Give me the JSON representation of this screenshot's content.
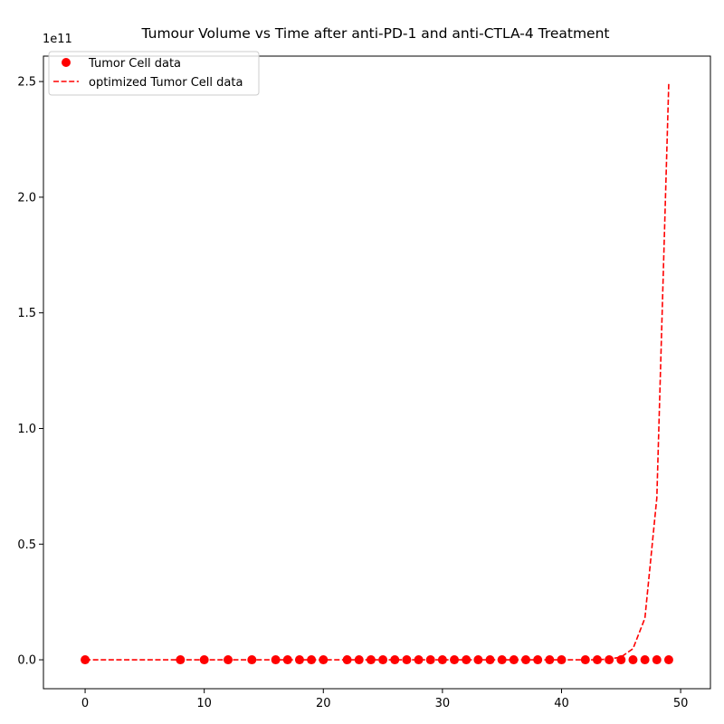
{
  "chart_data": {
    "type": "scatter",
    "title": "Tumour Volume vs Time after anti-PD-1 and anti-CTLA-4 Treatment",
    "xlabel": "",
    "ylabel": "",
    "y_offset_text": "1e11",
    "xlim": [
      -3.5,
      52.5
    ],
    "ylim": [
      -12500000000,
      261000000000
    ],
    "x_ticks": [
      0,
      10,
      20,
      30,
      40,
      50
    ],
    "x_tick_labels": [
      "0",
      "10",
      "20",
      "30",
      "40",
      "50"
    ],
    "y_ticks": [
      0,
      50000000000,
      100000000000,
      150000000000,
      200000000000,
      250000000000
    ],
    "y_tick_labels": [
      "0.0",
      "0.5",
      "1.0",
      "1.5",
      "2.0",
      "2.5"
    ],
    "legend_position": "top-left",
    "series": [
      {
        "name": "Tumor Cell data",
        "kind": "markers",
        "color": "#ff0000",
        "x": [
          0,
          8,
          10,
          12,
          14,
          16,
          17,
          18,
          19,
          20,
          22,
          23,
          24,
          25,
          26,
          27,
          28,
          29,
          30,
          31,
          32,
          33,
          34,
          35,
          36,
          37,
          38,
          39,
          40,
          42,
          43,
          44,
          45,
          46,
          47,
          48,
          49
        ],
        "y": [
          0,
          0,
          0,
          0,
          0,
          0,
          0,
          0,
          0,
          0,
          0,
          0,
          0,
          0,
          0,
          0,
          0,
          0,
          0,
          0,
          0,
          0,
          0,
          0,
          0,
          0,
          0,
          0,
          0,
          0,
          0,
          0,
          0,
          0,
          0,
          0,
          0
        ]
      },
      {
        "name": "optimized Tumor Cell data",
        "kind": "dashed-line",
        "color": "#ff0000",
        "x": [
          0,
          8,
          10,
          12,
          14,
          16,
          17,
          18,
          19,
          20,
          22,
          23,
          24,
          25,
          26,
          27,
          28,
          29,
          30,
          31,
          32,
          33,
          34,
          35,
          36,
          37,
          38,
          39,
          40,
          42,
          43,
          44,
          45,
          46,
          47,
          48,
          49
        ],
        "y": [
          0,
          0,
          0,
          0,
          0,
          0,
          0,
          0,
          0,
          0,
          0,
          0,
          0,
          0,
          0,
          0,
          0,
          0,
          0,
          0,
          0,
          0,
          0,
          0,
          0,
          0,
          0,
          0,
          0,
          0,
          0,
          300000000,
          1200000000,
          4800000000,
          18000000000,
          70000000000,
          249000000000
        ]
      }
    ]
  }
}
